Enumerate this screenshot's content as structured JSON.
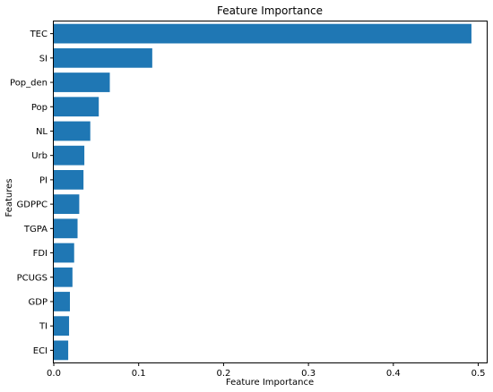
{
  "chart_data": {
    "type": "bar",
    "orientation": "horizontal",
    "title": "Feature Importance",
    "xlabel": "Feature Importance",
    "ylabel": "Features",
    "categories": [
      "TEC",
      "SI",
      "Pop_den",
      "Pop",
      "NL",
      "Urb",
      "PI",
      "GDPPC",
      "TGPA",
      "FDI",
      "PCUGS",
      "GDP",
      "TI",
      "ECI"
    ],
    "values": [
      0.492,
      0.116,
      0.066,
      0.053,
      0.043,
      0.036,
      0.035,
      0.03,
      0.028,
      0.024,
      0.022,
      0.019,
      0.018,
      0.017
    ],
    "xlim": [
      0,
      0.51
    ],
    "xticks": [
      "0.0",
      "0.1",
      "0.2",
      "0.3",
      "0.4",
      "0.5"
    ],
    "grid": false,
    "bar_color": "#1f77b4"
  }
}
